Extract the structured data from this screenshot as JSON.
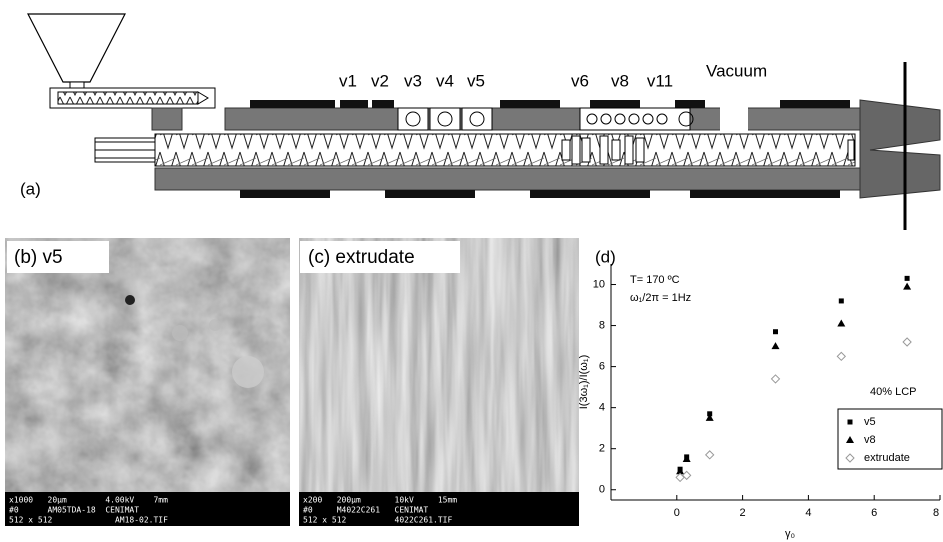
{
  "diagram": {
    "label": "(a)",
    "ports": [
      "v1",
      "v2",
      "v3",
      "v4",
      "v5",
      "v6",
      "v8",
      "v11"
    ],
    "vacuum": "Vacuum"
  },
  "images": [
    {
      "label": "(b) v5",
      "info": [
        "x1000   20μm        4.00kV    7mm",
        "#0      AM05TDA-18  CENIMAT",
        "512 x 512             AM18-02.TIF"
      ]
    },
    {
      "label": "(c) extrudate",
      "info": [
        "x200   200μm       10kV     15mm",
        "#0     M4022C261   CENIMAT",
        "512 x 512          4022C261.TIF"
      ]
    }
  ],
  "chart_data": {
    "type": "scatter",
    "panel": "(d)",
    "annotations": [
      "T= 170 ºC",
      "ω₁/2π = 1Hz",
      "40% LCP"
    ],
    "x_label": "γ₀",
    "y_label": "I(3ω₁)/I(ω₁)",
    "x": [
      0.1,
      0.3,
      1,
      3,
      5,
      7
    ],
    "series": [
      {
        "name": "v5",
        "marker": "square",
        "color": "#000000",
        "values": [
          1.0,
          1.6,
          3.7,
          7.7,
          9.2,
          10.3
        ]
      },
      {
        "name": "v8",
        "marker": "triangle",
        "color": "#000000",
        "values": [
          0.9,
          1.5,
          3.5,
          7.0,
          8.1,
          9.9
        ]
      },
      {
        "name": "extrudate",
        "marker": "diamond",
        "color": "#999999",
        "values": [
          0.6,
          0.7,
          1.7,
          5.4,
          6.5,
          7.2
        ]
      }
    ],
    "xlim": [
      -2,
      8
    ],
    "ylim": [
      -0.5,
      11
    ],
    "xticks": [
      0,
      2,
      4,
      6,
      8
    ],
    "yticks": [
      0,
      2,
      4,
      6,
      8,
      10
    ],
    "grid": false,
    "legend": "lower right"
  }
}
